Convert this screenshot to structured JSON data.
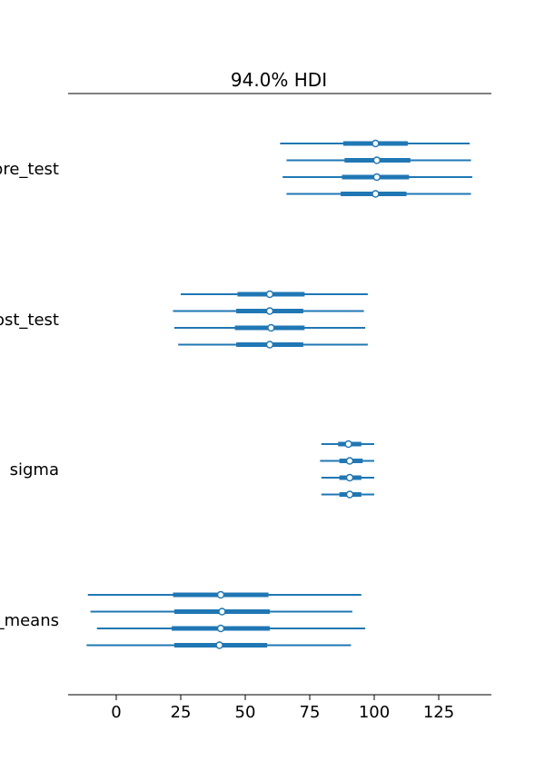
{
  "chart_data": {
    "type": "forest",
    "title": "94.0% HDI",
    "xlabel": "",
    "ylabel": "",
    "xlim": [
      -18.5,
      145
    ],
    "xticks": [
      0,
      25,
      50,
      75,
      100,
      125
    ],
    "grid": false,
    "legend": "none",
    "color": "#1f77b4",
    "variables": [
      {
        "label": "pre_test",
        "chains": [
          {
            "hdi_low": 63.5,
            "q25": 88.0,
            "median": 100.5,
            "q75": 113.0,
            "hdi_high": 137.0
          },
          {
            "hdi_low": 66.0,
            "q25": 88.5,
            "median": 101.0,
            "q75": 114.0,
            "hdi_high": 137.5
          },
          {
            "hdi_low": 64.5,
            "q25": 87.5,
            "median": 101.0,
            "q75": 113.5,
            "hdi_high": 138.0
          },
          {
            "hdi_low": 66.0,
            "q25": 87.0,
            "median": 100.5,
            "q75": 112.5,
            "hdi_high": 137.5
          }
        ]
      },
      {
        "label": "post_test",
        "chains": [
          {
            "hdi_low": 25.0,
            "q25": 47.0,
            "median": 59.5,
            "q75": 73.0,
            "hdi_high": 97.5
          },
          {
            "hdi_low": 22.0,
            "q25": 46.5,
            "median": 59.5,
            "q75": 72.5,
            "hdi_high": 96.0
          },
          {
            "hdi_low": 22.5,
            "q25": 46.0,
            "median": 60.0,
            "q75": 73.0,
            "hdi_high": 96.5
          },
          {
            "hdi_low": 24.0,
            "q25": 46.5,
            "median": 59.5,
            "q75": 72.5,
            "hdi_high": 97.5
          }
        ]
      },
      {
        "label": "sigma",
        "chains": [
          {
            "hdi_low": 79.5,
            "q25": 86.0,
            "median": 90.0,
            "q75": 95.0,
            "hdi_high": 100.0
          },
          {
            "hdi_low": 79.0,
            "q25": 86.5,
            "median": 90.5,
            "q75": 95.5,
            "hdi_high": 100.0
          },
          {
            "hdi_low": 79.5,
            "q25": 86.5,
            "median": 90.5,
            "q75": 95.0,
            "hdi_high": 100.0
          },
          {
            "hdi_low": 79.5,
            "q25": 86.5,
            "median": 90.5,
            "q75": 95.0,
            "hdi_high": 100.0
          }
        ]
      },
      {
        "label": "group_means",
        "chains": [
          {
            "hdi_low": -11.0,
            "q25": 22.0,
            "median": 40.5,
            "q75": 59.0,
            "hdi_high": 95.0
          },
          {
            "hdi_low": -10.0,
            "q25": 22.5,
            "median": 41.0,
            "q75": 59.5,
            "hdi_high": 91.5
          },
          {
            "hdi_low": -7.5,
            "q25": 21.5,
            "median": 40.5,
            "q75": 59.5,
            "hdi_high": 96.5
          },
          {
            "hdi_low": -11.5,
            "q25": 22.5,
            "median": 40.0,
            "q75": 58.5,
            "hdi_high": 91.0
          }
        ]
      }
    ]
  }
}
